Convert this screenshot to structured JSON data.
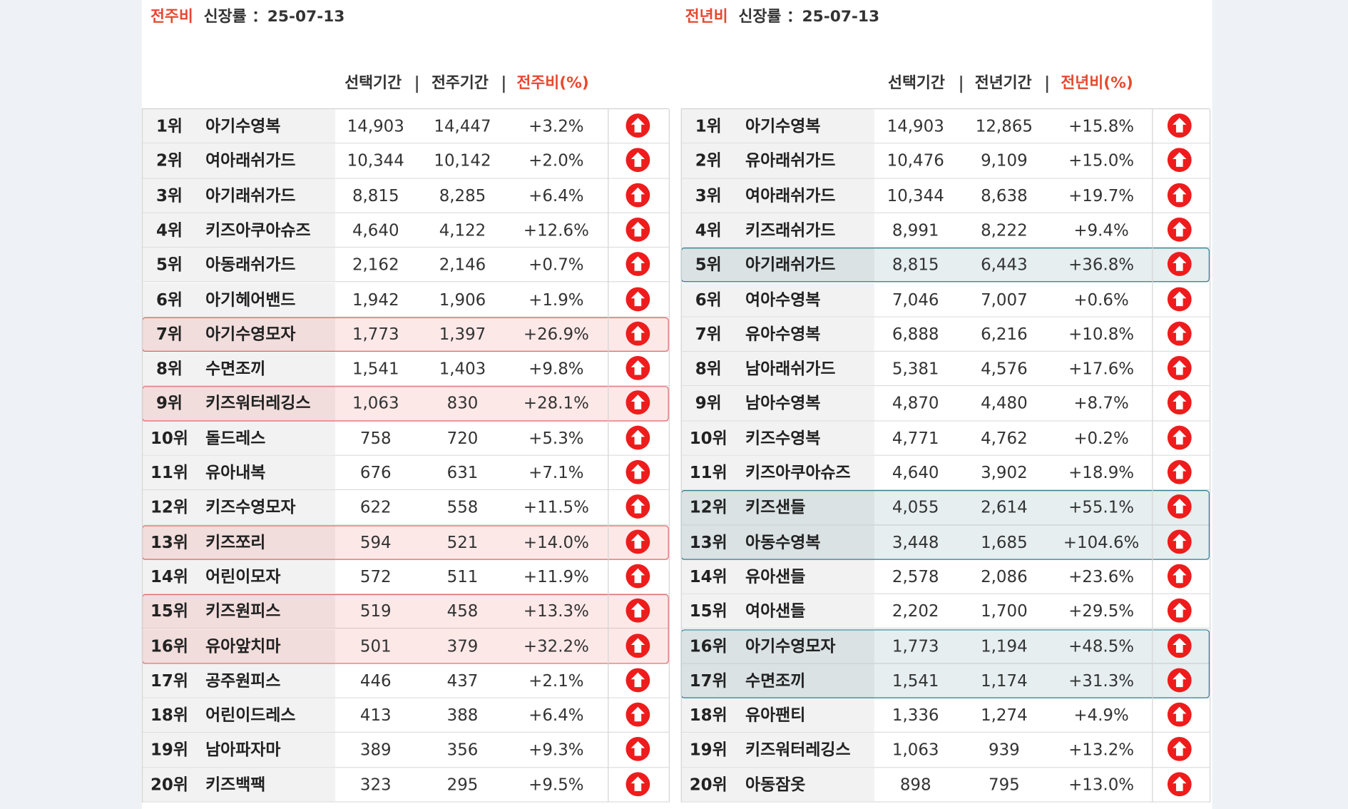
{
  "left": {
    "title_highlight": "전주비",
    "title_rest": "신장률 ：25-07-13",
    "headers": [
      "선택기간",
      "전주기간",
      "전주비(%)"
    ],
    "rows": [
      {
        "cells": [
          "1위",
          "아기수영복",
          "14,903",
          "14,447",
          "+3.2%"
        ],
        "highlighted": false
      },
      {
        "cells": [
          "2위",
          "여아래쉬가드",
          "10,344",
          "10,142",
          "+2.0%"
        ],
        "highlighted": false
      },
      {
        "cells": [
          "3위",
          "아기래쉬가드",
          "8,815",
          "8,285",
          "+6.4%"
        ],
        "highlighted": false
      },
      {
        "cells": [
          "4위",
          "키즈아쿠아슈즈",
          "4,640",
          "4,122",
          "+12.6%"
        ],
        "highlighted": false
      },
      {
        "cells": [
          "5위",
          "아동래쉬가드",
          "2,162",
          "2,146",
          "+0.7%"
        ],
        "highlighted": false
      },
      {
        "cells": [
          "6위",
          "아기헤어밴드",
          "1,942",
          "1,906",
          "+1.9%"
        ],
        "highlighted": false
      },
      {
        "cells": [
          "7위",
          "아기수영모자",
          "1,773",
          "1,397",
          "+26.9%"
        ],
        "highlighted": true
      },
      {
        "cells": [
          "8위",
          "수면조끼",
          "1,541",
          "1,403",
          "+9.8%"
        ],
        "highlighted": false
      },
      {
        "cells": [
          "9위",
          "키즈워터레깅스",
          "1,063",
          "830",
          "+28.1%"
        ],
        "highlighted": true
      },
      {
        "cells": [
          "10위",
          "돌드레스",
          "758",
          "720",
          "+5.3%"
        ],
        "highlighted": false
      },
      {
        "cells": [
          "11위",
          "유아내복",
          "676",
          "631",
          "+7.1%"
        ],
        "highlighted": false
      },
      {
        "cells": [
          "12위",
          "키즈수영모자",
          "622",
          "558",
          "+11.5%"
        ],
        "highlighted": false
      },
      {
        "cells": [
          "13위",
          "키즈쪼리",
          "594",
          "521",
          "+14.0%"
        ],
        "highlighted": true
      },
      {
        "cells": [
          "14위",
          "어린이모자",
          "572",
          "511",
          "+11.9%"
        ],
        "highlighted": false
      },
      {
        "cells": [
          "15위",
          "키즈원피스",
          "519",
          "458",
          "+13.3%"
        ],
        "highlighted": true
      },
      {
        "cells": [
          "16위",
          "유아앞치마",
          "501",
          "379",
          "+32.2%"
        ],
        "highlighted": true
      },
      {
        "cells": [
          "17위",
          "공주원피스",
          "446",
          "437",
          "+2.1%"
        ],
        "highlighted": false
      },
      {
        "cells": [
          "18위",
          "어린이드레스",
          "413",
          "388",
          "+6.4%"
        ],
        "highlighted": false
      },
      {
        "cells": [
          "19위",
          "남아파자마",
          "389",
          "356",
          "+9.3%"
        ],
        "highlighted": false
      },
      {
        "cells": [
          "20위",
          "키즈백팩",
          "323",
          "295",
          "+9.5%"
        ],
        "highlighted": false
      }
    ]
  },
  "right": {
    "title_highlight": "전년비",
    "title_rest": "신장률 ：25-07-13",
    "headers": [
      "선택기간",
      "전년기간",
      "전년비(%)"
    ],
    "rows": [
      {
        "cells": [
          "1위",
          "아기수영복",
          "14,903",
          "12,865",
          "+15.8%"
        ],
        "highlighted": false
      },
      {
        "cells": [
          "2위",
          "유아래쉬가드",
          "10,476",
          "9,109",
          "+15.0%"
        ],
        "highlighted": false
      },
      {
        "cells": [
          "3위",
          "여아래쉬가드",
          "10,344",
          "8,638",
          "+19.7%"
        ],
        "highlighted": false
      },
      {
        "cells": [
          "4위",
          "키즈래쉬가드",
          "8,991",
          "8,222",
          "+9.4%"
        ],
        "highlighted": false
      },
      {
        "cells": [
          "5위",
          "아기래쉬가드",
          "8,815",
          "6,443",
          "+36.8%"
        ],
        "highlighted": true
      },
      {
        "cells": [
          "6위",
          "여아수영복",
          "7,046",
          "7,007",
          "+0.6%"
        ],
        "highlighted": false
      },
      {
        "cells": [
          "7위",
          "유아수영복",
          "6,888",
          "6,216",
          "+10.8%"
        ],
        "highlighted": false
      },
      {
        "cells": [
          "8위",
          "남아래쉬가드",
          "5,381",
          "4,576",
          "+17.6%"
        ],
        "highlighted": false
      },
      {
        "cells": [
          "9위",
          "남아수영복",
          "4,870",
          "4,480",
          "+8.7%"
        ],
        "highlighted": false
      },
      {
        "cells": [
          "10위",
          "키즈수영복",
          "4,771",
          "4,762",
          "+0.2%"
        ],
        "highlighted": false
      },
      {
        "cells": [
          "11위",
          "키즈아쿠아슈즈",
          "4,640",
          "3,902",
          "+18.9%"
        ],
        "highlighted": false
      },
      {
        "cells": [
          "12위",
          "키즈샌들",
          "4,055",
          "2,614",
          "+55.1%"
        ],
        "highlighted": true
      },
      {
        "cells": [
          "13위",
          "아동수영복",
          "3,448",
          "1,685",
          "+104.6%"
        ],
        "highlighted": true
      },
      {
        "cells": [
          "14위",
          "유아샌들",
          "2,578",
          "2,086",
          "+23.6%"
        ],
        "highlighted": false
      },
      {
        "cells": [
          "15위",
          "여아샌들",
          "2,202",
          "1,700",
          "+29.5%"
        ],
        "highlighted": false
      },
      {
        "cells": [
          "16위",
          "아기수영모자",
          "1,773",
          "1,194",
          "+48.5%"
        ],
        "highlighted": true
      },
      {
        "cells": [
          "17위",
          "수면조끼",
          "1,541",
          "1,174",
          "+31.3%"
        ],
        "highlighted": true
      },
      {
        "cells": [
          "18위",
          "유아팬티",
          "1,336",
          "1,274",
          "+4.9%"
        ],
        "highlighted": false
      },
      {
        "cells": [
          "19위",
          "키즈워터레깅스",
          "1,063",
          "939",
          "+13.2%"
        ],
        "highlighted": false
      },
      {
        "cells": [
          "20위",
          "아동잠옷",
          "898",
          "795",
          "+13.0%"
        ],
        "highlighted": false
      }
    ]
  }
}
